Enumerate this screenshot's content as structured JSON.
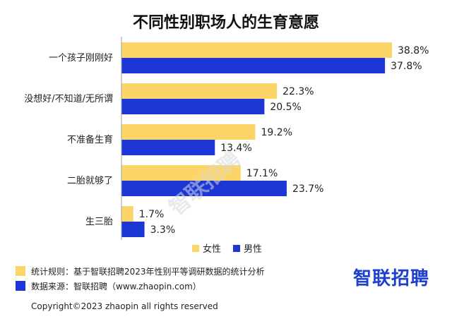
{
  "chart_data": {
    "type": "bar",
    "orientation": "horizontal",
    "title": "不同性别职场人的生育意愿",
    "categories": [
      "一个孩子刚刚好",
      "没想好/不知道/无所谓",
      "不准备生育",
      "二胎就够了",
      "生三胎"
    ],
    "series": [
      {
        "name": "女性",
        "color": "#fcd568",
        "values": [
          38.8,
          22.3,
          19.2,
          17.1,
          1.7
        ],
        "labels": [
          "38.8%",
          "22.3%",
          "19.2%",
          "17.1%",
          "1.7%"
        ]
      },
      {
        "name": "男性",
        "color": "#1c37d6",
        "values": [
          37.8,
          20.5,
          13.4,
          23.7,
          3.3
        ],
        "labels": [
          "37.8%",
          "20.5%",
          "13.4%",
          "23.7%",
          "3.3%"
        ]
      }
    ],
    "xlim": [
      0,
      40
    ],
    "legend_position": "bottom-right"
  },
  "footer": {
    "stat_rule": "统计规则：基于智联招聘2023年性别平等调研数据的统计分析",
    "data_source": "数据来源：智联招聘（www.zhaopin.com）",
    "brand": "智联招聘",
    "copyright": "Copyright©2023 zhaopin all rights reserved",
    "watermark": "智联招聘"
  }
}
